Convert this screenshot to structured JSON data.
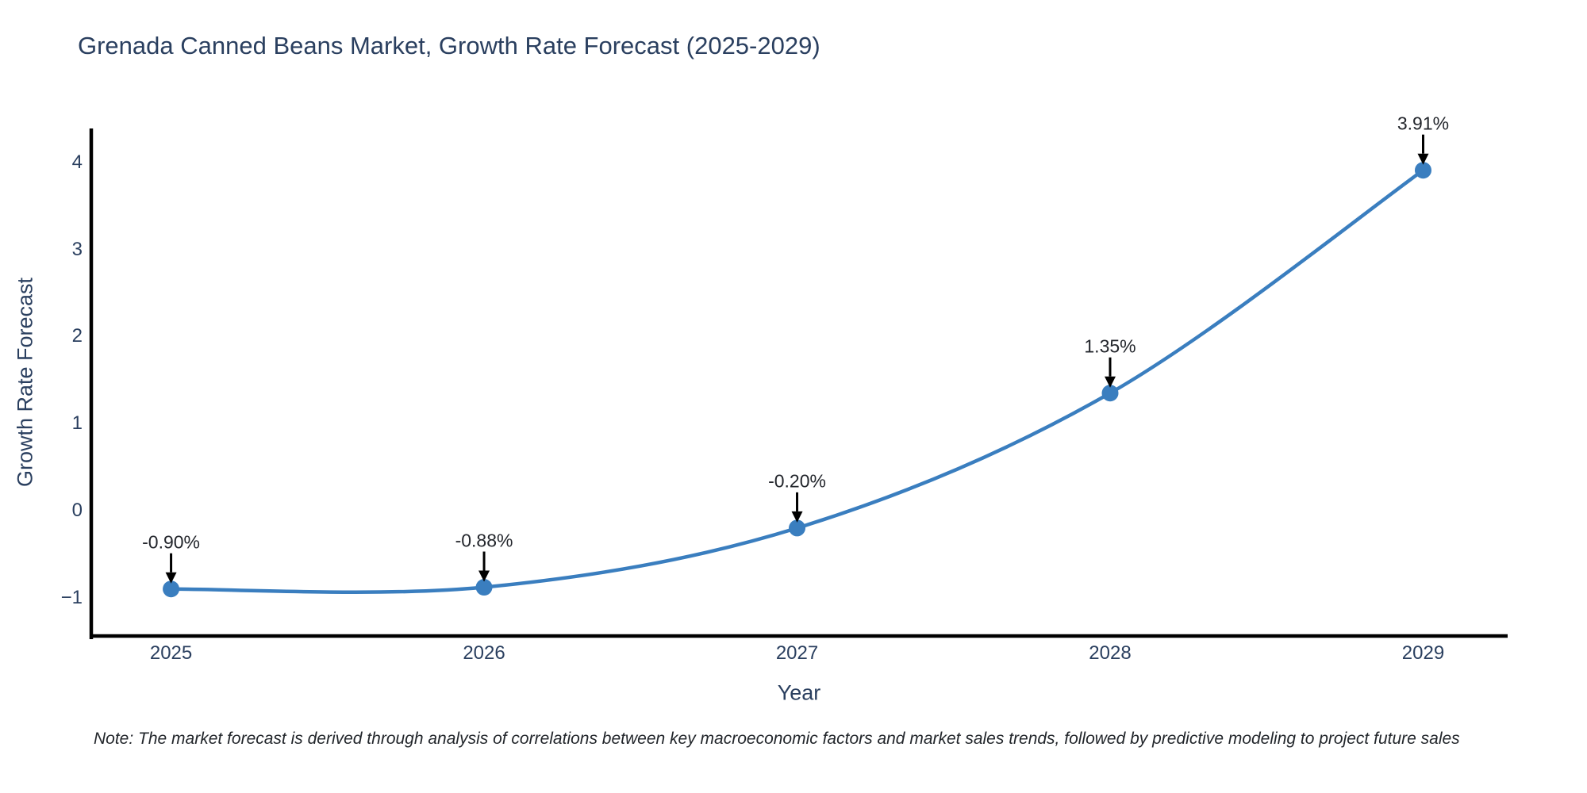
{
  "title": "Grenada Canned Beans Market, Growth Rate Forecast (2025-2029)",
  "note": "Note: The market forecast is derived through analysis of correlations between key macroeconomic factors and market sales trends, followed by predictive modeling to project future sales",
  "chart_data": {
    "type": "line",
    "title": "Grenada Canned Beans Market, Growth Rate Forecast (2025-2029)",
    "x": [
      2025,
      2026,
      2027,
      2028,
      2029
    ],
    "series": [
      {
        "name": "Growth Rate Forecast",
        "values": [
          -0.9,
          -0.88,
          -0.2,
          1.35,
          3.91
        ]
      }
    ],
    "point_labels": [
      "-0.90%",
      "-0.88%",
      "-0.20%",
      "1.35%",
      "3.91%"
    ],
    "xlabel": "Year",
    "ylabel": "Growth Rate Forecast",
    "xtick_labels": [
      "2025",
      "2026",
      "2027",
      "2028",
      "2029"
    ],
    "xtick_values": [
      2025,
      2026,
      2027,
      2028,
      2029
    ],
    "ytick_labels": [
      "−1",
      "0",
      "1",
      "2",
      "3",
      "4"
    ],
    "ytick_values": [
      -1,
      0,
      1,
      2,
      3,
      4
    ],
    "xlim": [
      2024.74,
      2029.27
    ],
    "ylim": [
      -1.44,
      4.39
    ],
    "line_shape": "spline",
    "grid": false,
    "legend": "none",
    "colors": {
      "line": "#3a7ebf",
      "marker": "#3a7ebf",
      "axis": "#000000",
      "arrow": "#000000",
      "title_text": "#2a3f5f",
      "tick_text": "#2a3f5f",
      "annotation_text": "#23262c",
      "background": "#ffffff"
    }
  }
}
